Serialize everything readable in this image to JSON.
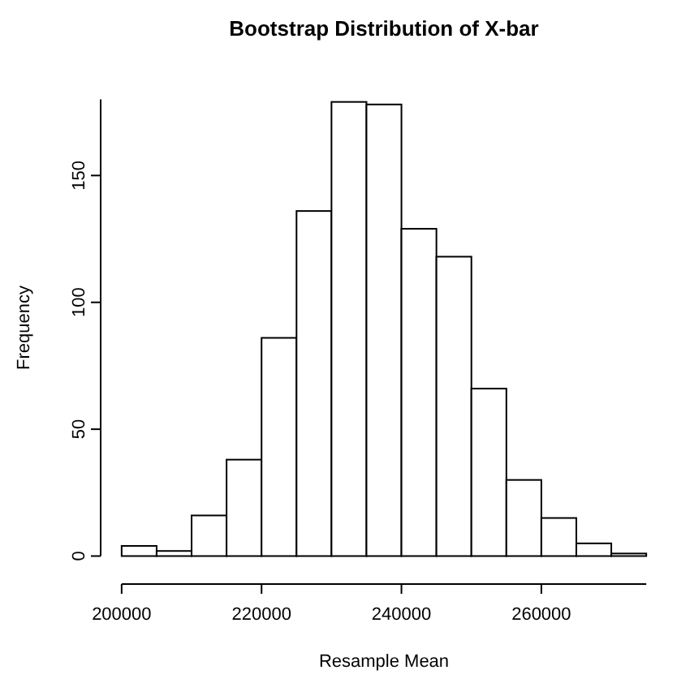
{
  "chart_data": {
    "type": "histogram",
    "title": "Bootstrap Distribution of X-bar",
    "xlabel": "Resample Mean",
    "ylabel": "Frequency",
    "bins": [
      200000,
      205000,
      210000,
      215000,
      220000,
      225000,
      230000,
      235000,
      240000,
      245000,
      250000,
      255000,
      260000,
      265000,
      270000,
      275000
    ],
    "values": [
      4,
      2,
      16,
      38,
      86,
      136,
      179,
      178,
      129,
      118,
      66,
      30,
      15,
      5,
      1
    ],
    "color": "#ffffff",
    "xlim": [
      200000,
      275000
    ],
    "xticks": [
      200000,
      220000,
      240000,
      260000
    ],
    "ylim": [
      0,
      180
    ],
    "yticks": [
      0,
      50,
      100,
      150
    ],
    "grid": false
  }
}
